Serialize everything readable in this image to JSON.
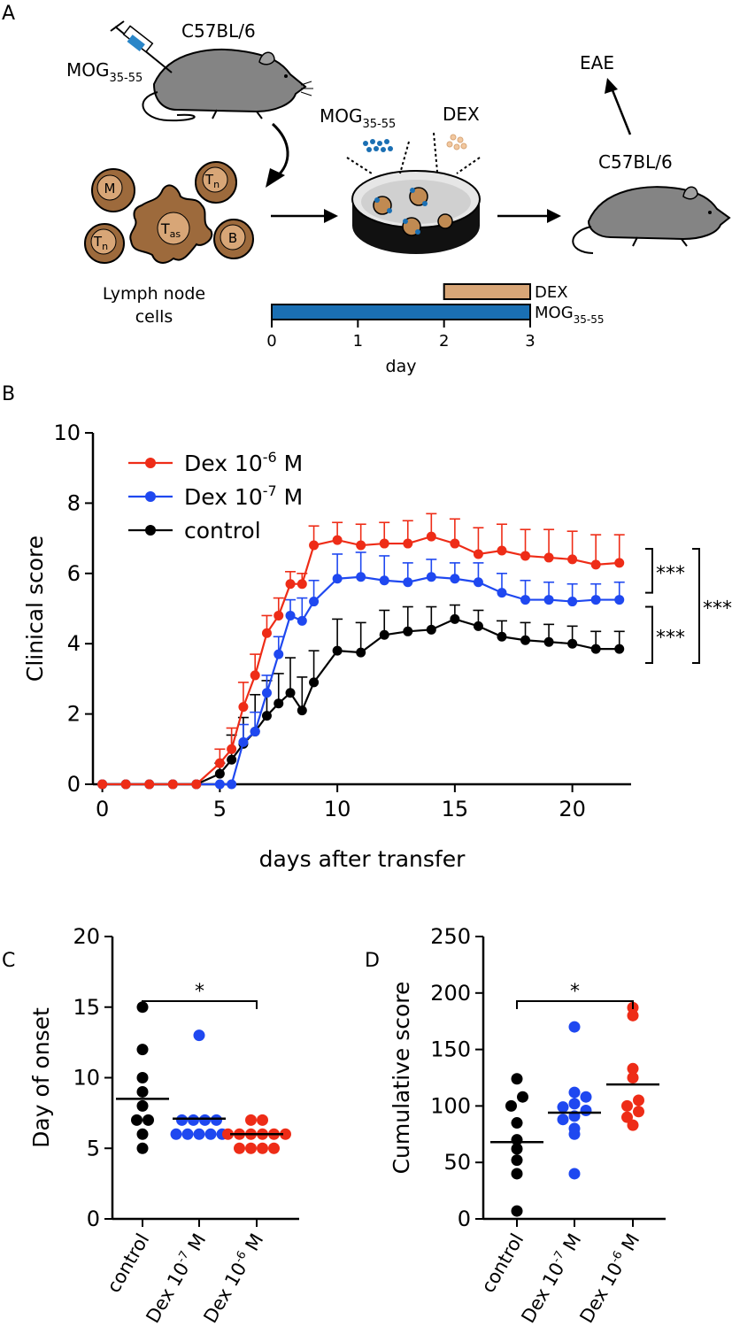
{
  "colors": {
    "red": "#ee2c17",
    "blue": "#1f48f0",
    "black": "#000000",
    "tan": "#d8a677",
    "dark_brown": "#6a3c1c",
    "cell_brown": "#9d6a3c",
    "mouse_gray": "#848484",
    "dish_gray": "#d7d7d7",
    "mog_blue": "#1a6fb3"
  },
  "panel_a": {
    "label": "A",
    "mouse1": {
      "strain": "C57BL/6",
      "injection": "MOG",
      "injection_sub": "35-55"
    },
    "cells": [
      {
        "letter": "M",
        "sub": ""
      },
      {
        "letter": "T",
        "sub": "n"
      },
      {
        "letter": "T",
        "sub": "n"
      },
      {
        "letter": "T",
        "sub": "as"
      },
      {
        "letter": "B",
        "sub": ""
      }
    ],
    "cells_caption": [
      "Lymph node",
      "cells"
    ],
    "dish": {
      "antigen": "MOG",
      "antigen_sub": "35-55",
      "drug": "DEX"
    },
    "mouse2": {
      "strain": "C57BL/6",
      "outcome": "EAE"
    },
    "timeline": {
      "axis_label": "day",
      "ticks": [
        0,
        1,
        2,
        3
      ],
      "bars": [
        {
          "label": "DEX",
          "sub": "",
          "start": 2,
          "end": 3,
          "color": "#d8a677"
        },
        {
          "label": "MOG",
          "sub": "35-55",
          "start": 0,
          "end": 3,
          "color": "#1a6fb3"
        }
      ]
    }
  },
  "panel_b_label": "B",
  "panel_c_label": "C",
  "panel_d_label": "D",
  "chart_data": [
    {
      "panel": "B",
      "type": "line",
      "xlabel": "days after transfer",
      "ylabel": "Clinical score",
      "xlim": [
        -0.4,
        22.5
      ],
      "ylim": [
        0,
        10
      ],
      "xticks": [
        0,
        5,
        10,
        15,
        20
      ],
      "yticks": [
        0,
        2,
        4,
        6,
        8,
        10
      ],
      "legend": "top-left",
      "significance": [
        {
          "between": [
            "Dex 10-6 M",
            "Dex 10-7 M"
          ],
          "label": "***"
        },
        {
          "between": [
            "Dex 10-7 M",
            "control"
          ],
          "label": "***"
        },
        {
          "between": [
            "Dex 10-6 M",
            "control"
          ],
          "label": "***"
        }
      ],
      "series": [
        {
          "name": "Dex 10-6 M",
          "legend_base": "Dex 10",
          "legend_exp": "-6",
          "legend_unit": " M",
          "color": "#ee2c17",
          "x": [
            0,
            1,
            2,
            3,
            4,
            5,
            5.5,
            6,
            6.5,
            7,
            7.5,
            8,
            8.5,
            9,
            10,
            11,
            12,
            13,
            14,
            15,
            16,
            17,
            18,
            19,
            20,
            21,
            22
          ],
          "y": [
            0,
            0,
            0,
            0,
            0,
            0.6,
            1.0,
            2.2,
            3.1,
            4.3,
            4.8,
            5.7,
            5.7,
            6.8,
            6.95,
            6.8,
            6.85,
            6.85,
            7.05,
            6.85,
            6.55,
            6.65,
            6.5,
            6.45,
            6.4,
            6.25,
            6.3
          ],
          "err": [
            0,
            0,
            0,
            0,
            0,
            0.4,
            0.6,
            0.7,
            0.6,
            0.5,
            0.5,
            0.35,
            0.3,
            0.55,
            0.5,
            0.6,
            0.6,
            0.65,
            0.65,
            0.7,
            0.75,
            0.75,
            0.75,
            0.8,
            0.8,
            0.85,
            0.8
          ]
        },
        {
          "name": "Dex 10-7 M",
          "legend_base": "Dex 10",
          "legend_exp": "-7",
          "legend_unit": " M",
          "color": "#1f48f0",
          "x": [
            0,
            1,
            2,
            3,
            4,
            5,
            5.5,
            6,
            6.5,
            7,
            7.5,
            8,
            8.5,
            9,
            10,
            11,
            12,
            13,
            14,
            15,
            16,
            17,
            18,
            19,
            20,
            21,
            22
          ],
          "y": [
            0,
            0,
            0,
            0,
            0,
            0,
            0,
            1.2,
            1.5,
            2.6,
            3.7,
            4.8,
            4.65,
            5.2,
            5.85,
            5.9,
            5.8,
            5.75,
            5.9,
            5.85,
            5.75,
            5.45,
            5.25,
            5.25,
            5.2,
            5.25,
            5.25
          ],
          "err": [
            0,
            0,
            0,
            0,
            0,
            0,
            0,
            0.5,
            0.55,
            0.5,
            0.5,
            0.45,
            0.65,
            0.6,
            0.7,
            0.7,
            0.7,
            0.55,
            0.5,
            0.45,
            0.55,
            0.55,
            0.55,
            0.5,
            0.5,
            0.45,
            0.5
          ]
        },
        {
          "name": "control",
          "legend_base": "control",
          "legend_exp": "",
          "legend_unit": "",
          "color": "#000000",
          "x": [
            0,
            1,
            2,
            3,
            4,
            5,
            5.5,
            6,
            6.5,
            7,
            7.5,
            8,
            8.5,
            9,
            10,
            11,
            12,
            13,
            14,
            15,
            16,
            17,
            18,
            19,
            20,
            21,
            22
          ],
          "y": [
            0,
            0,
            0,
            0,
            0,
            0.3,
            0.7,
            1.15,
            1.5,
            1.95,
            2.3,
            2.6,
            2.1,
            2.9,
            3.8,
            3.75,
            4.25,
            4.35,
            4.4,
            4.7,
            4.5,
            4.2,
            4.1,
            4.05,
            4.0,
            3.85,
            3.85
          ],
          "err": [
            0,
            0,
            0,
            0,
            0,
            0.3,
            0.7,
            0.75,
            1.05,
            1.0,
            0.85,
            1.0,
            0.95,
            0.9,
            0.9,
            0.85,
            0.7,
            0.7,
            0.65,
            0.4,
            0.45,
            0.45,
            0.5,
            0.5,
            0.5,
            0.5,
            0.5
          ]
        }
      ]
    },
    {
      "panel": "C",
      "type": "scatter",
      "ylabel": "Day of onset",
      "ylim": [
        0,
        20
      ],
      "yticks": [
        0,
        5,
        10,
        15,
        20
      ],
      "significance": {
        "from": "control",
        "to": "Dex 10-6 M",
        "label": "*"
      },
      "groups": [
        {
          "name": "control",
          "base": "control",
          "exp": "",
          "unit": "",
          "color": "#000000",
          "mean": 8.5,
          "values": [
            5,
            6,
            7,
            7,
            8,
            9,
            10,
            12,
            15
          ]
        },
        {
          "name": "Dex 10-7 M",
          "base": "Dex 10",
          "exp": "-7",
          "unit": " M",
          "color": "#1f48f0",
          "mean": 7.1,
          "values": [
            6,
            6,
            6,
            6,
            6,
            7,
            7,
            7,
            7,
            13
          ]
        },
        {
          "name": "Dex 10-6 M",
          "base": "Dex 10",
          "exp": "-6",
          "unit": " M",
          "color": "#ee2c17",
          "mean": 6.0,
          "values": [
            5,
            5,
            5,
            5,
            6,
            6,
            6,
            6,
            6,
            6,
            7,
            7
          ]
        }
      ]
    },
    {
      "panel": "D",
      "type": "scatter",
      "ylabel": "Cumulative score",
      "ylim": [
        0,
        250
      ],
      "yticks": [
        0,
        50,
        100,
        150,
        200,
        250
      ],
      "significance": {
        "from": "control",
        "to": "Dex 10-6 M",
        "label": "*"
      },
      "groups": [
        {
          "name": "control",
          "base": "control",
          "exp": "",
          "unit": "",
          "color": "#000000",
          "mean": 68,
          "values": [
            7,
            40,
            52,
            62,
            70,
            85,
            100,
            108,
            124
          ]
        },
        {
          "name": "Dex 10-7 M",
          "base": "Dex 10",
          "exp": "-7",
          "unit": " M",
          "color": "#1f48f0",
          "mean": 94,
          "values": [
            40,
            75,
            80,
            88,
            91,
            96,
            99,
            102,
            108,
            112,
            170
          ]
        },
        {
          "name": "Dex 10-6 M",
          "base": "Dex 10",
          "exp": "-6",
          "unit": " M",
          "color": "#ee2c17",
          "mean": 119,
          "values": [
            83,
            90,
            95,
            100,
            105,
            125,
            133,
            180,
            187
          ]
        }
      ]
    }
  ]
}
